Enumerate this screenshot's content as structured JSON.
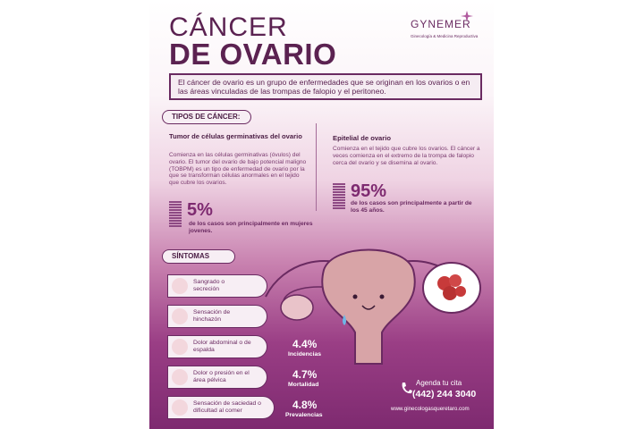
{
  "title": {
    "line1": "CÁNCER",
    "line2": "DE OVARIO"
  },
  "logo": {
    "name": "GYNEMER",
    "tagline": "Ginecología & Medicina Reproductiva"
  },
  "intro": "El cáncer de ovario es un grupo de enfermedades que se originan en los ovarios o en las áreas vinculadas de las trompas de falopio y el peritoneo.",
  "types": {
    "heading": "TIPOS DE CÁNCER:",
    "left": {
      "title": "Tumor de células germinativas del ovario",
      "text": "Comienza en las células germinativas (óvulos) del ovario. El tumor del ovario de bajo potencial maligno (TOBPM) es un tipo de enfermedad de ovario por la que se transforman células anormales en el tejido que cubre los ovarios.",
      "percent": "5%",
      "note": "de los casos son principalmente en mujeres jovenes."
    },
    "right": {
      "title": "Epitelial de ovario",
      "text": "Comienza en el tejido que cubre los ovarios. El cáncer a veces comienza en el extremo de la trompa de falopio cerca del ovario y se disemina al ovario.",
      "percent": "95%",
      "note": "de los casos son principalmente a partir de los 45 años."
    }
  },
  "symptoms": {
    "heading": "SÍNTOMAS",
    "items": [
      {
        "label": "Sangrado o secreción",
        "icon": "uterus-icon"
      },
      {
        "label": "Sensación de hinchazón",
        "icon": "abdomen-icon"
      },
      {
        "label": "Dolor abdominal o de espalda",
        "icon": "pain-icon"
      },
      {
        "label": "Dolor o presión en el área pélvica",
        "icon": "pelvis-icon"
      },
      {
        "label": "Sensación de saciedad o dificultad al comer",
        "icon": "woman-icon"
      }
    ]
  },
  "stats": [
    {
      "value": "4.4%",
      "label": "Incidencias"
    },
    {
      "value": "4.7%",
      "label": "Mortalidad"
    },
    {
      "value": "4.8%",
      "label": "Prevalencias"
    }
  ],
  "cta": {
    "label": "Agenda tu cita",
    "phone": "(442) 244 3040",
    "website": "www.ginecologasqueretaro.com"
  },
  "colors": {
    "brand": "#6a2a61",
    "accent": "#7e2a70",
    "background_bottom": "#7e2a70"
  }
}
